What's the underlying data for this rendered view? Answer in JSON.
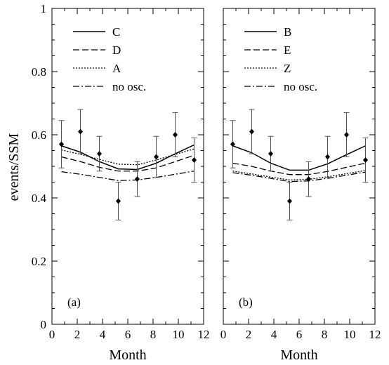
{
  "ylabel": "events/SSM",
  "chart_data": [
    {
      "type": "line",
      "panel_label": "(a)",
      "xlabel": "Month",
      "xlim": [
        0,
        12
      ],
      "ylim": [
        0,
        1
      ],
      "xticks": [
        0,
        2,
        4,
        6,
        8,
        10,
        12
      ],
      "yticks": [
        0,
        0.2,
        0.4,
        0.6,
        0.8,
        1
      ],
      "yticklabels": [
        "0",
        "0.2",
        "0.4",
        "0.6",
        "0.8",
        "1"
      ],
      "legend_position": "top-left",
      "series": [
        {
          "name": "C",
          "style": "solid",
          "x": [
            0.75,
            2.25,
            3.75,
            5.25,
            6.75,
            8.25,
            9.75,
            11.25
          ],
          "y": [
            0.565,
            0.545,
            0.515,
            0.492,
            0.49,
            0.51,
            0.54,
            0.568
          ]
        },
        {
          "name": "D",
          "style": "dashed",
          "x": [
            0.75,
            2.25,
            3.75,
            5.25,
            6.75,
            8.25,
            9.75,
            11.25
          ],
          "y": [
            0.53,
            0.515,
            0.497,
            0.485,
            0.485,
            0.495,
            0.515,
            0.535
          ]
        },
        {
          "name": "A",
          "style": "dotted",
          "x": [
            0.75,
            2.25,
            3.75,
            5.25,
            6.75,
            8.25,
            9.75,
            11.25
          ],
          "y": [
            0.552,
            0.538,
            0.522,
            0.507,
            0.505,
            0.52,
            0.538,
            0.555
          ]
        },
        {
          "name": "no osc.",
          "style": "dashdot",
          "x": [
            0.75,
            2.25,
            3.75,
            5.25,
            6.75,
            8.25,
            9.75,
            11.25
          ],
          "y": [
            0.483,
            0.475,
            0.465,
            0.455,
            0.457,
            0.465,
            0.475,
            0.485
          ]
        }
      ],
      "points": {
        "x": [
          0.75,
          2.25,
          3.75,
          5.25,
          6.75,
          8.25,
          9.75,
          11.25
        ],
        "y": [
          0.57,
          0.61,
          0.54,
          0.39,
          0.46,
          0.53,
          0.6,
          0.52
        ],
        "err": [
          0.075,
          0.07,
          0.055,
          0.06,
          0.055,
          0.065,
          0.07,
          0.07
        ]
      }
    },
    {
      "type": "line",
      "panel_label": "(b)",
      "xlabel": "Month",
      "xlim": [
        0,
        12
      ],
      "ylim": [
        0,
        1
      ],
      "xticks": [
        0,
        2,
        4,
        6,
        8,
        10,
        12
      ],
      "yticks": [
        0,
        0.2,
        0.4,
        0.6,
        0.8,
        1
      ],
      "yticklabels": [],
      "legend_position": "top-left",
      "series": [
        {
          "name": "B",
          "style": "solid",
          "x": [
            0.75,
            2.25,
            3.75,
            5.25,
            6.75,
            8.25,
            9.75,
            11.25
          ],
          "y": [
            0.565,
            0.543,
            0.51,
            0.488,
            0.488,
            0.508,
            0.537,
            0.565
          ]
        },
        {
          "name": "E",
          "style": "dashed",
          "x": [
            0.75,
            2.25,
            3.75,
            5.25,
            6.75,
            8.25,
            9.75,
            11.25
          ],
          "y": [
            0.51,
            0.5,
            0.485,
            0.474,
            0.474,
            0.484,
            0.497,
            0.51
          ]
        },
        {
          "name": "Z",
          "style": "dotted",
          "x": [
            0.75,
            2.25,
            3.75,
            5.25,
            6.75,
            8.25,
            9.75,
            11.25
          ],
          "y": [
            0.485,
            0.476,
            0.466,
            0.457,
            0.459,
            0.467,
            0.477,
            0.487
          ]
        },
        {
          "name": "no osc.",
          "style": "dashdot",
          "x": [
            0.75,
            2.25,
            3.75,
            5.25,
            6.75,
            8.25,
            9.75,
            11.25
          ],
          "y": [
            0.48,
            0.472,
            0.462,
            0.452,
            0.454,
            0.462,
            0.472,
            0.482
          ]
        }
      ],
      "points": {
        "x": [
          0.75,
          2.25,
          3.75,
          5.25,
          6.75,
          8.25,
          9.75,
          11.25
        ],
        "y": [
          0.57,
          0.61,
          0.54,
          0.39,
          0.46,
          0.53,
          0.6,
          0.52
        ],
        "err": [
          0.075,
          0.07,
          0.055,
          0.06,
          0.055,
          0.065,
          0.07,
          0.07
        ]
      }
    }
  ]
}
